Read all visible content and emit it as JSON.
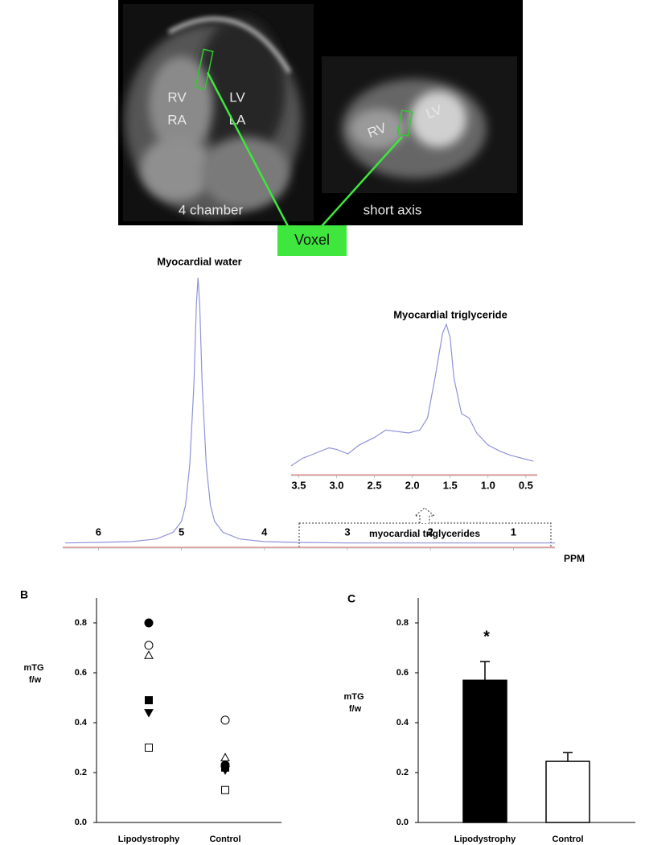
{
  "image_panel": {
    "labels": [
      "RV",
      "RA",
      "LV",
      "LA",
      "RV",
      "LV"
    ],
    "captions": [
      "4 chamber",
      "short axis"
    ],
    "voxel_label": "Voxel"
  },
  "panel_labels": [
    "B",
    "C"
  ],
  "chart_data": [
    {
      "type": "line",
      "title": "Myocardial water",
      "annotation": "myocardial triglycerides",
      "xlabel": "PPM",
      "x": [
        6.4,
        6.0,
        5.6,
        5.3,
        5.1,
        5.0,
        4.95,
        4.9,
        4.85,
        4.82,
        4.8,
        4.78,
        4.75,
        4.7,
        4.65,
        4.6,
        4.5,
        4.3,
        4.0,
        3.6,
        3.0,
        2.0,
        1.0,
        0.5
      ],
      "series": [
        {
          "color": "#8f93d8",
          "values": [
            1,
            1.2,
            1.5,
            2.5,
            5,
            9,
            15,
            30,
            60,
            90,
            100,
            90,
            60,
            30,
            15,
            9,
            5,
            2.5,
            1.5,
            1.2,
            1,
            1,
            1,
            1
          ]
        }
      ],
      "xlim": [
        6.43,
        0.5
      ],
      "ylim": [
        0,
        100
      ],
      "xticks": [
        6,
        5,
        4,
        3,
        2,
        1
      ],
      "baseline_color": "#e07070"
    },
    {
      "type": "line",
      "title": "Myocardial triglyceride",
      "x": [
        3.6,
        3.45,
        3.3,
        3.1,
        3.0,
        2.85,
        2.7,
        2.5,
        2.35,
        2.2,
        2.05,
        1.9,
        1.8,
        1.7,
        1.6,
        1.55,
        1.5,
        1.45,
        1.35,
        1.25,
        1.15,
        1.0,
        0.85,
        0.7,
        0.55,
        0.4
      ],
      "series": [
        {
          "color": "#8f93d8",
          "values": [
            5,
            10,
            13,
            17,
            16,
            13,
            19,
            24,
            29,
            28,
            27,
            29,
            37,
            64,
            94,
            100,
            91,
            64,
            40,
            37,
            27,
            19,
            15,
            12,
            10,
            8
          ]
        }
      ],
      "xlim": [
        3.6,
        0.35
      ],
      "ylim": [
        0,
        100
      ],
      "xticks": [
        3.5,
        {
          "value": 3,
          "label": "3.0"
        },
        2.5,
        {
          "value": 2,
          "label": "2.0"
        },
        1.5,
        {
          "value": 1,
          "label": "1.0"
        },
        0.5
      ],
      "baseline_color": "#e07070"
    },
    {
      "type": "scatter",
      "ylabel": "mTG f/w",
      "categories": [
        "Lipodystrophy",
        "Control"
      ],
      "series": [
        {
          "marker": "circle",
          "filled": true,
          "values": [
            0.8,
            0.23
          ]
        },
        {
          "marker": "circle",
          "filled": false,
          "values": [
            0.71,
            0.41
          ]
        },
        {
          "marker": "triangle-up",
          "filled": false,
          "values": [
            0.67,
            0.26
          ]
        },
        {
          "marker": "square",
          "filled": true,
          "values": [
            0.49,
            0.22
          ]
        },
        {
          "marker": "triangle-down",
          "filled": true,
          "values": [
            0.44,
            0.21
          ]
        },
        {
          "marker": "square",
          "filled": false,
          "values": [
            0.3,
            0.13
          ]
        }
      ],
      "ylim": [
        0,
        0.9
      ],
      "yticks": [
        {
          "value": 0,
          "label": "0.0"
        },
        0.2,
        0.4,
        0.6,
        0.8
      ]
    },
    {
      "type": "bar",
      "ylabel": "mTG f/w",
      "categories": [
        "Lipodystrophy",
        "Control"
      ],
      "values": [
        0.57,
        0.245
      ],
      "errors": [
        0.075,
        0.035
      ],
      "colors": [
        "#000000",
        "#ffffff"
      ],
      "annotation": "*",
      "ylim": [
        0,
        0.9
      ],
      "yticks": [
        {
          "value": 0,
          "label": "0.0"
        },
        0.2,
        0.4,
        0.6,
        0.8
      ]
    }
  ]
}
